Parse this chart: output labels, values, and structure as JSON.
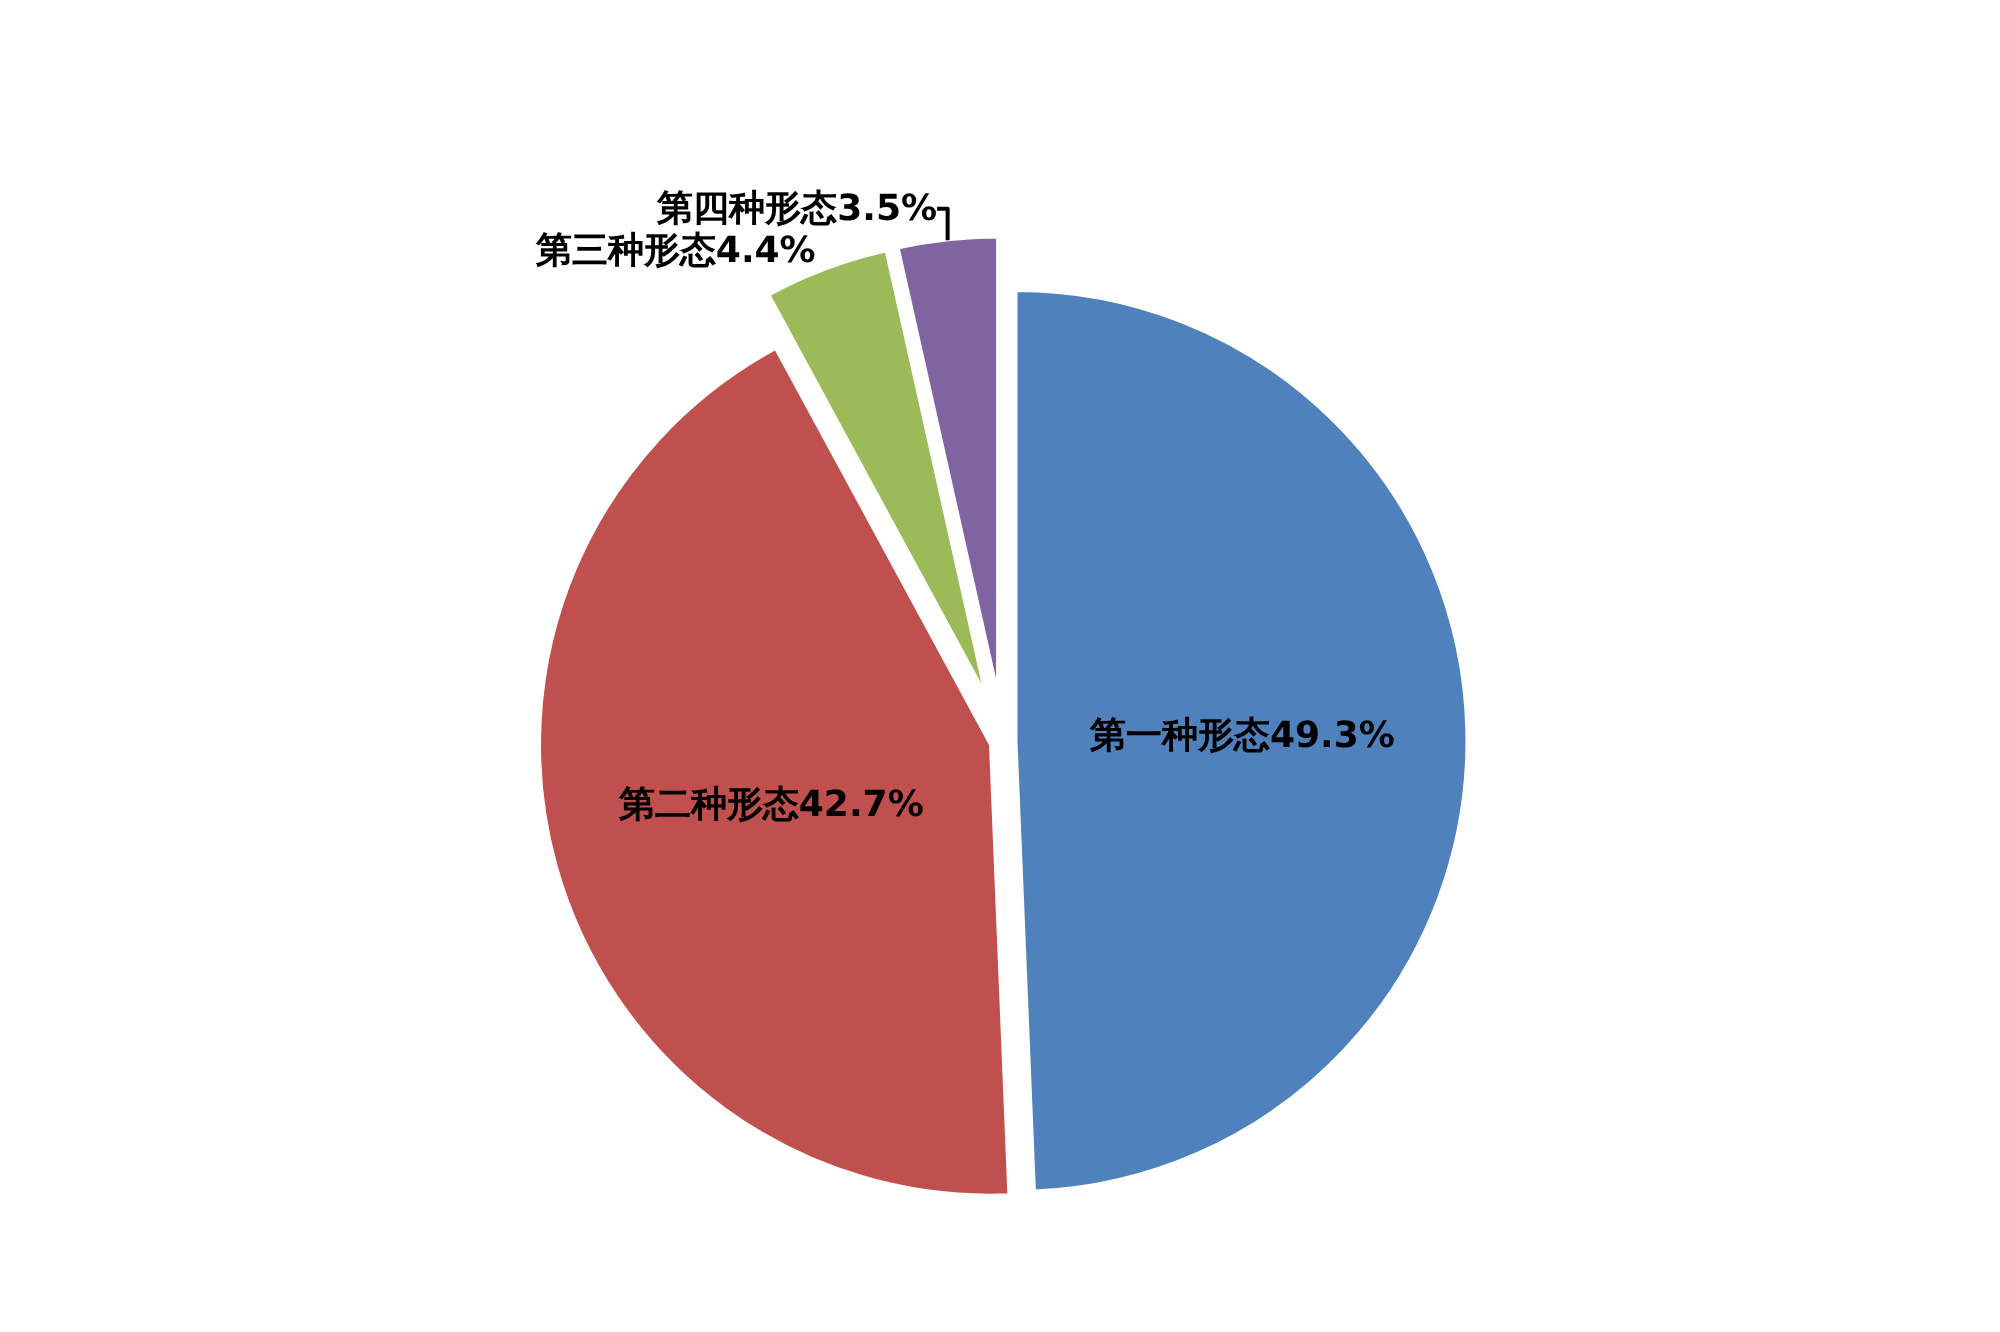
{
  "chart_data": {
    "type": "pie",
    "categories": [
      "第一种形态",
      "第二种形态",
      "第三种形态",
      "第四种形态"
    ],
    "values": [
      49.3,
      42.7,
      4.4,
      3.5
    ],
    "value_labels": [
      "49.3%",
      "42.7%",
      "4.4%",
      "3.5%"
    ],
    "colors": [
      "#4f81bd",
      "#c0504d",
      "#9bbb59",
      "#8064a2"
    ],
    "legend": false
  }
}
